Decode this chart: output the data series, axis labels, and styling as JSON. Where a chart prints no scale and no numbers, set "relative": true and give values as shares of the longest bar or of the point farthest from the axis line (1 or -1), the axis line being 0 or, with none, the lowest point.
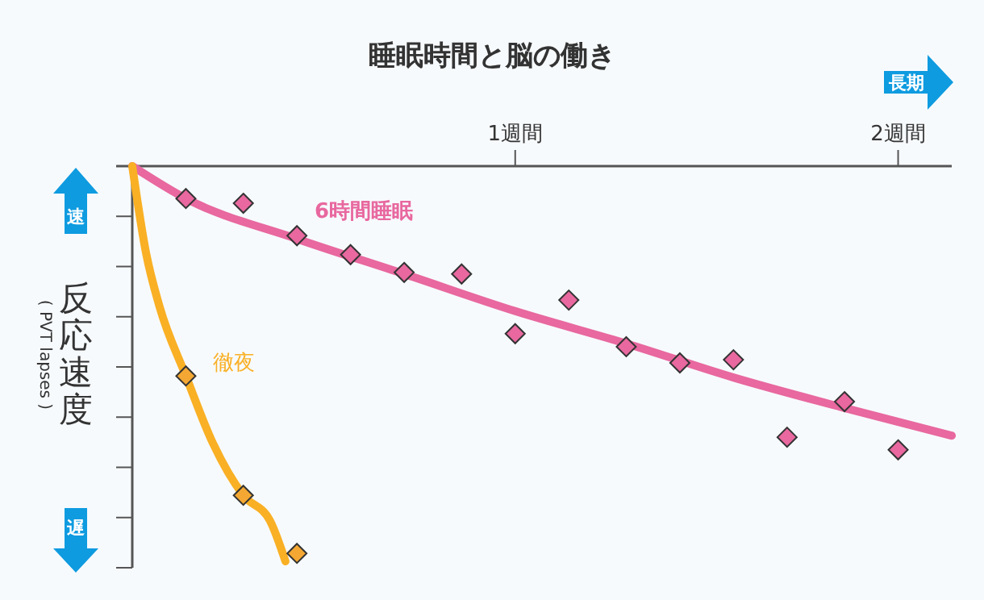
{
  "chart_data": {
    "type": "line",
    "title": "睡眠時間と脳の働き",
    "ylabel": "反応速度",
    "relative": true,
    "xlim": [
      0,
      2.14
    ],
    "xticks": [
      {
        "value": 1,
        "label": "1週間"
      },
      {
        "value": 2,
        "label": "2週間"
      }
    ],
    "grid": false,
    "legend": false,
    "line_style": "solid",
    "annotations": [
      "長期",
      "速",
      "遅",
      "( PVT lapses )"
    ],
    "series": [
      {
        "name": "6時間睡眠",
        "type": "line",
        "color": "#e8689f",
        "marker": "none",
        "x": [
          0,
          0.14,
          0.43,
          0.71,
          1,
          1.29,
          1.57,
          1.86,
          2.14
        ],
        "values": [
          0,
          -0.082,
          -0.184,
          -0.273,
          -0.367,
          -0.449,
          -0.535,
          -0.612,
          -0.682
        ]
      },
      {
        "type": "scatter",
        "color": "#e8689f",
        "marker": "diamond",
        "x": [
          0.14,
          0.29,
          0.43,
          0.57,
          0.71,
          0.86,
          1,
          1.14,
          1.29,
          1.43,
          1.57,
          1.71,
          1.86,
          2
        ],
        "values": [
          -0.082,
          -0.094,
          -0.176,
          -0.224,
          -0.269,
          -0.273,
          -0.424,
          -0.339,
          -0.457,
          -0.498,
          -0.49,
          -0.686,
          -0.596,
          -0.718
        ]
      },
      {
        "name": "徹夜",
        "type": "line",
        "color": "#f9b025",
        "marker": "none",
        "x": [
          0,
          0.036,
          0.071,
          0.14,
          0.21,
          0.29,
          0.36,
          0.4
        ],
        "values": [
          0,
          -0.22,
          -0.355,
          -0.531,
          -0.7,
          -0.833,
          -0.898,
          -1
        ]
      },
      {
        "type": "scatter",
        "color": "#f4a833",
        "marker": "diamond",
        "x": [
          0.14,
          0.29,
          0.43
        ],
        "values": [
          -0.531,
          -0.833,
          -0.98
        ]
      }
    ]
  }
}
